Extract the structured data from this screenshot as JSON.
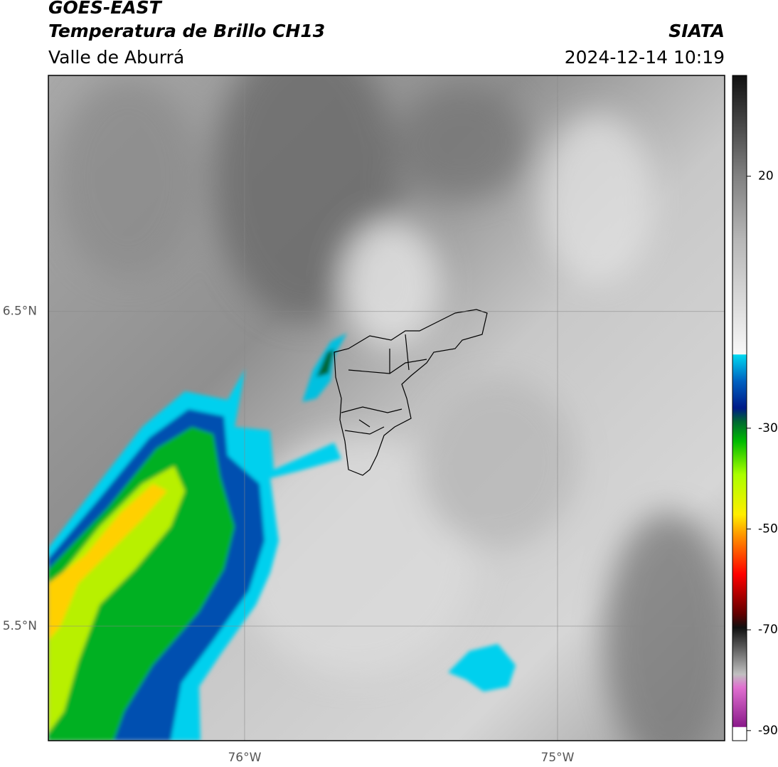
{
  "title": "GOES-EAST",
  "subtitle": "Temperatura de Brillo CH13",
  "region": "Valle de Aburrá",
  "source": "SIATA",
  "datetime": "2024-12-14 10:19",
  "map": {
    "xlim": [
      -76.627,
      -74.466
    ],
    "ylim": [
      5.136,
      7.25
    ],
    "xticks": [
      {
        "value": -76,
        "label": "76°W"
      },
      {
        "value": -75,
        "label": "75°W"
      }
    ],
    "yticks": [
      {
        "value": 6.5,
        "label": "6.5°N"
      },
      {
        "value": 5.5,
        "label": "5.5°N"
      }
    ],
    "grid": true
  },
  "colorbar": {
    "lim": [
      -92,
      40
    ],
    "ticks": [
      20,
      -30,
      -50,
      -70,
      -90
    ]
  }
}
